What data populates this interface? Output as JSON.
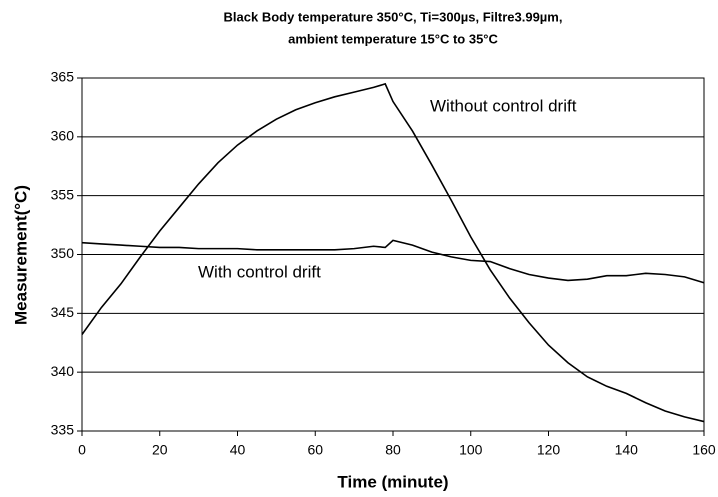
{
  "chart_data": {
    "type": "line",
    "title": [
      "Black Body temperature 350°C, Ti=300µs, Filtre3.99µm,",
      "ambient temperature 15°C to 35°C"
    ],
    "x_label": "Time (minute)",
    "y_label": "Measurement(°C)",
    "x": [
      0,
      5,
      10,
      15,
      20,
      25,
      30,
      35,
      40,
      45,
      50,
      55,
      60,
      65,
      70,
      75,
      78,
      80,
      85,
      90,
      95,
      100,
      105,
      110,
      115,
      120,
      125,
      130,
      135,
      140,
      145,
      150,
      155,
      160
    ],
    "series": [
      {
        "name": "Without control drift",
        "color": "#000000",
        "values": [
          343.2,
          345.5,
          347.5,
          349.8,
          352.0,
          354.0,
          356.0,
          357.8,
          359.3,
          360.5,
          361.5,
          362.3,
          362.9,
          363.4,
          363.8,
          364.2,
          364.5,
          363.0,
          360.5,
          357.6,
          354.6,
          351.5,
          348.7,
          346.3,
          344.2,
          342.3,
          340.8,
          339.6,
          338.8,
          338.2,
          337.4,
          336.7,
          336.2,
          335.8
        ]
      },
      {
        "name": "With control drift",
        "color": "#000000",
        "values": [
          351.0,
          350.9,
          350.8,
          350.7,
          350.6,
          350.6,
          350.5,
          350.5,
          350.5,
          350.4,
          350.4,
          350.4,
          350.4,
          350.4,
          350.5,
          350.7,
          350.6,
          351.2,
          350.8,
          350.2,
          349.8,
          349.5,
          349.4,
          348.8,
          348.3,
          348.0,
          347.8,
          347.9,
          348.2,
          348.2,
          348.4,
          348.3,
          348.1,
          347.6
        ]
      }
    ],
    "xlim": [
      0,
      160
    ],
    "xticks": [
      0,
      20,
      40,
      60,
      80,
      100,
      120,
      140,
      160
    ],
    "ylim": [
      335,
      365
    ],
    "yticks": [
      335,
      340,
      345,
      350,
      355,
      360,
      365
    ],
    "grid": true
  }
}
